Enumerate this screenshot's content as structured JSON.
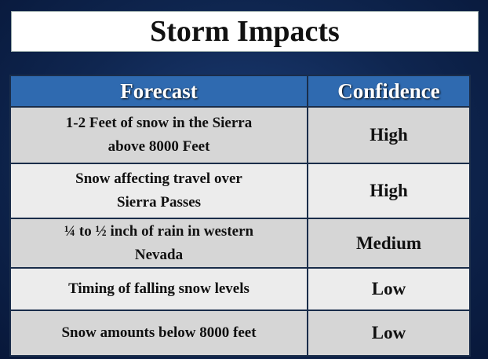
{
  "header": {
    "title": "Storm Impacts"
  },
  "table": {
    "columns": [
      "Forecast",
      "Confidence"
    ],
    "rows": [
      {
        "forecast": [
          "1-2 Feet of snow in the Sierra",
          "above 8000 Feet"
        ],
        "confidence": "High"
      },
      {
        "forecast": [
          "Snow affecting travel over",
          "Sierra Passes"
        ],
        "confidence": "High"
      },
      {
        "forecast": [
          "¼ to ½ inch of rain in western",
          "Nevada"
        ],
        "confidence": "Medium"
      },
      {
        "forecast": [
          "Timing of falling snow levels"
        ],
        "confidence": "Low"
      },
      {
        "forecast": [
          "Snow amounts below 8000 feet"
        ],
        "confidence": "Low"
      }
    ]
  }
}
